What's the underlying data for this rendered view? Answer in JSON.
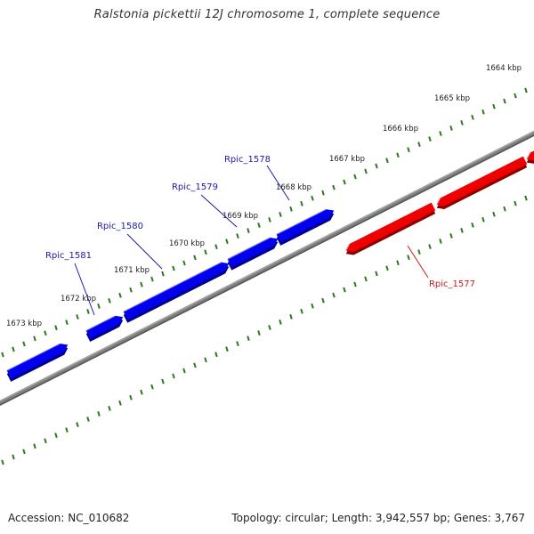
{
  "title": "Ralstonia pickettii 12J chromosome 1, complete sequence",
  "accession_text": "Accession: NC_010682",
  "topology_text": "Topology: circular; Length: 3,942,557 bp; Genes: 3,767",
  "colors": {
    "backbone": "#7f7f7f",
    "forward_gene": "#0000ee",
    "reverse_gene": "#ee0000",
    "forward_label": "#1a1aaa",
    "reverse_label": "#cc1a1a",
    "tick": "#2a7a1a"
  },
  "kbp_marks": [
    {
      "label": "1664 kbp",
      "kbp": 1664
    },
    {
      "label": "1665 kbp",
      "kbp": 1665
    },
    {
      "label": "1666 kbp",
      "kbp": 1666
    },
    {
      "label": "1667 kbp",
      "kbp": 1667
    },
    {
      "label": "1668 kbp",
      "kbp": 1668
    },
    {
      "label": "1669 kbp",
      "kbp": 1669
    },
    {
      "label": "1670 kbp",
      "kbp": 1670
    },
    {
      "label": "1671 kbp",
      "kbp": 1671
    },
    {
      "label": "1672 kbp",
      "kbp": 1672
    },
    {
      "label": "1673 kbp",
      "kbp": 1673
    }
  ],
  "genes": [
    {
      "name": "Rpic_1581",
      "strand": "forward"
    },
    {
      "name": "Rpic_1580",
      "strand": "forward"
    },
    {
      "name": "Rpic_1579",
      "strand": "forward"
    },
    {
      "name": "Rpic_1578",
      "strand": "forward"
    },
    {
      "name": "Rpic_1577",
      "strand": "reverse"
    }
  ]
}
